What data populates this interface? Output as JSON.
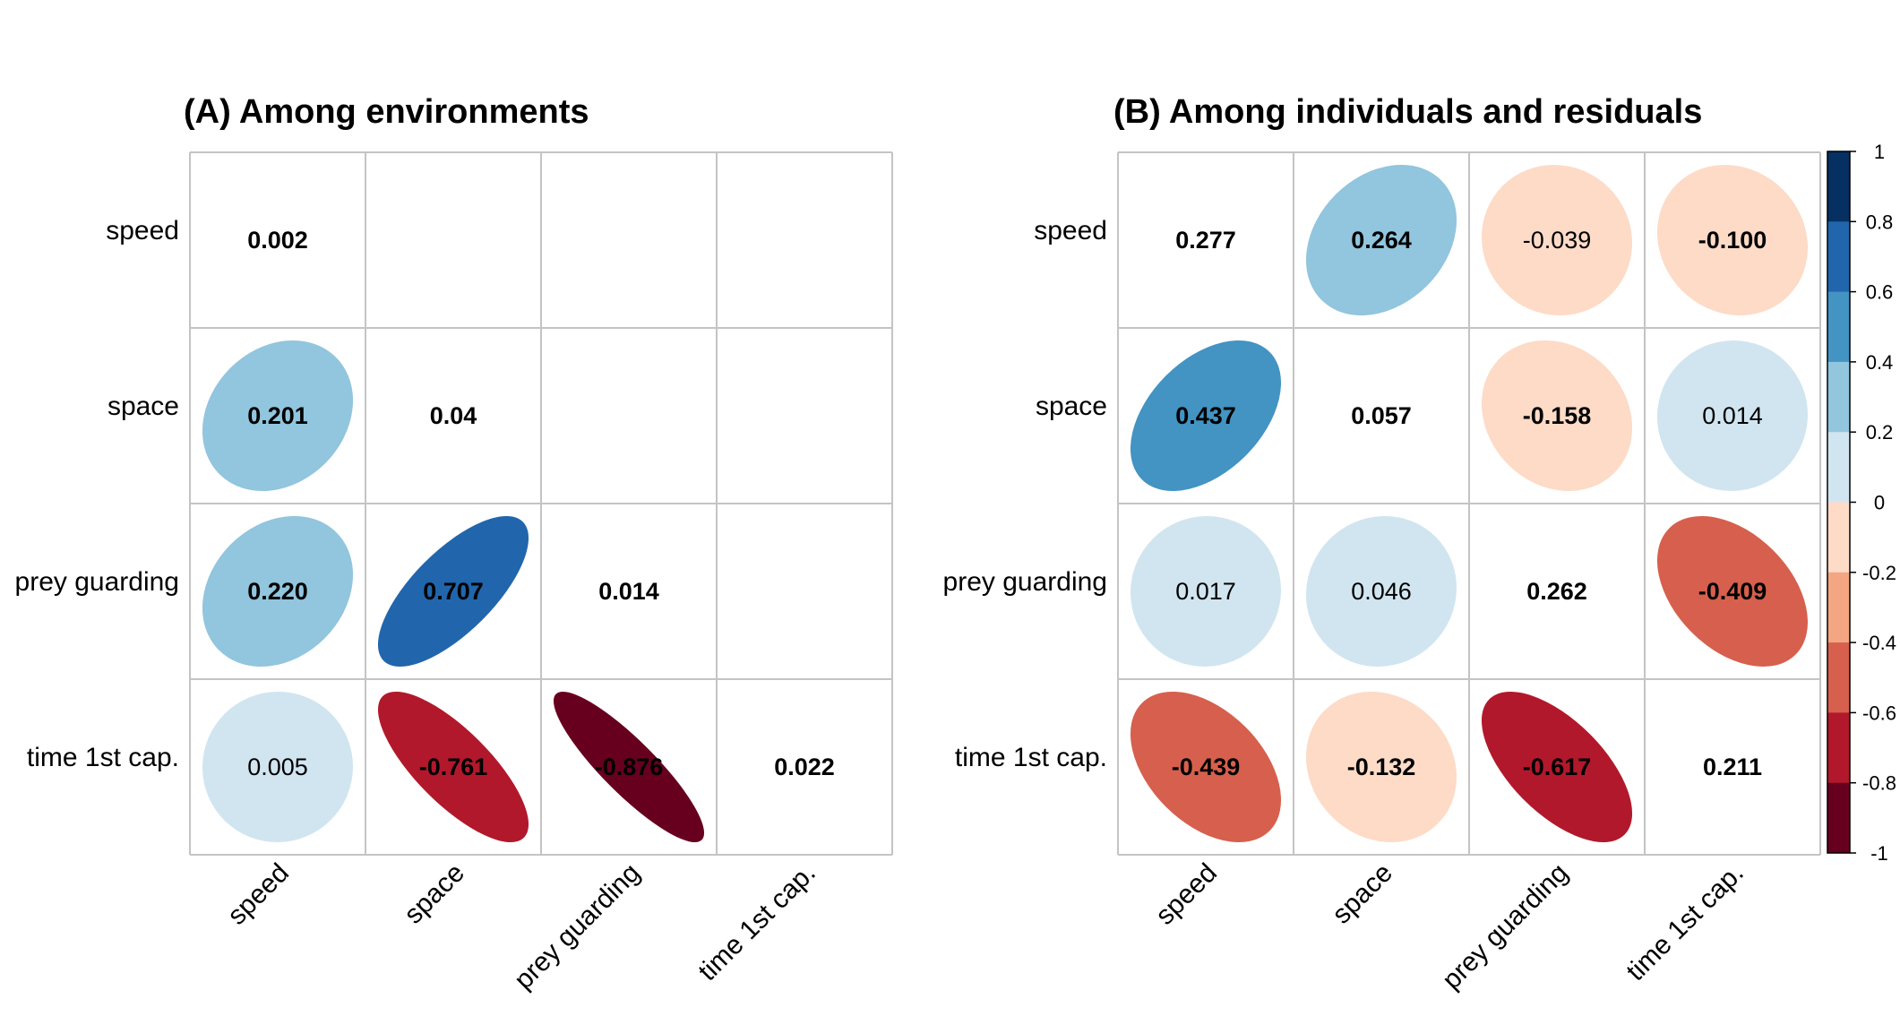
{
  "chart_data": [
    {
      "type": "heatmap",
      "subtype": "correlation-ellipse-matrix",
      "title": "(A) Among environments",
      "variables": [
        "speed",
        "space",
        "prey guarding",
        "time 1st cap."
      ],
      "triangle": "lower",
      "cells": [
        {
          "row": 0,
          "col": 0,
          "value": 0.002,
          "label": "0.002",
          "diagonal": true
        },
        {
          "row": 1,
          "col": 0,
          "value": 0.201,
          "label": "0.201"
        },
        {
          "row": 1,
          "col": 1,
          "value": 0.04,
          "label": "0.04",
          "diagonal": true
        },
        {
          "row": 2,
          "col": 0,
          "value": 0.22,
          "label": "0.220"
        },
        {
          "row": 2,
          "col": 1,
          "value": 0.707,
          "label": "0.707"
        },
        {
          "row": 2,
          "col": 2,
          "value": 0.014,
          "label": "0.014",
          "diagonal": true
        },
        {
          "row": 3,
          "col": 0,
          "value": 0.005,
          "label": "0.005"
        },
        {
          "row": 3,
          "col": 1,
          "value": -0.761,
          "label": "-0.761"
        },
        {
          "row": 3,
          "col": 2,
          "value": -0.876,
          "label": "-0.876"
        },
        {
          "row": 3,
          "col": 3,
          "value": 0.022,
          "label": "0.022",
          "diagonal": true
        }
      ]
    },
    {
      "type": "heatmap",
      "subtype": "correlation-ellipse-matrix",
      "title": "(B) Among individuals and residuals",
      "variables": [
        "speed",
        "space",
        "prey guarding",
        "time 1st cap."
      ],
      "triangle": "full",
      "cells": [
        {
          "row": 0,
          "col": 0,
          "value": 0.277,
          "label": "0.277",
          "diagonal": true
        },
        {
          "row": 0,
          "col": 1,
          "value": 0.264,
          "label": "0.264"
        },
        {
          "row": 0,
          "col": 2,
          "value": -0.039,
          "label": "-0.039"
        },
        {
          "row": 0,
          "col": 3,
          "value": -0.1,
          "label": "-0.100"
        },
        {
          "row": 1,
          "col": 0,
          "value": 0.437,
          "label": "0.437"
        },
        {
          "row": 1,
          "col": 1,
          "value": 0.057,
          "label": "0.057",
          "diagonal": true
        },
        {
          "row": 1,
          "col": 2,
          "value": -0.158,
          "label": "-0.158"
        },
        {
          "row": 1,
          "col": 3,
          "value": 0.014,
          "label": "0.014"
        },
        {
          "row": 2,
          "col": 0,
          "value": 0.017,
          "label": "0.017"
        },
        {
          "row": 2,
          "col": 1,
          "value": 0.046,
          "label": "0.046"
        },
        {
          "row": 2,
          "col": 2,
          "value": 0.262,
          "label": "0.262",
          "diagonal": true
        },
        {
          "row": 2,
          "col": 3,
          "value": -0.409,
          "label": "-0.409"
        },
        {
          "row": 3,
          "col": 0,
          "value": -0.439,
          "label": "-0.439"
        },
        {
          "row": 3,
          "col": 1,
          "value": -0.132,
          "label": "-0.132"
        },
        {
          "row": 3,
          "col": 2,
          "value": -0.617,
          "label": "-0.617"
        },
        {
          "row": 3,
          "col": 3,
          "value": 0.211,
          "label": "0.211",
          "diagonal": true
        }
      ]
    }
  ],
  "colorbar": {
    "range": [
      -1,
      1
    ],
    "ticks": [
      "1",
      "0.8",
      "0.6",
      "0.4",
      "0.2",
      "0",
      "-0.2",
      "-0.4",
      "-0.6",
      "-0.8",
      "-1"
    ],
    "bins": [
      {
        "from": 0.8,
        "to": 1.0,
        "color": "#053061"
      },
      {
        "from": 0.6,
        "to": 0.8,
        "color": "#2166ac"
      },
      {
        "from": 0.4,
        "to": 0.6,
        "color": "#4393c3"
      },
      {
        "from": 0.2,
        "to": 0.4,
        "color": "#92c5de"
      },
      {
        "from": 0.0,
        "to": 0.2,
        "color": "#d1e5f0"
      },
      {
        "from": -0.2,
        "to": 0.0,
        "color": "#fddbc7"
      },
      {
        "from": -0.4,
        "to": -0.2,
        "color": "#f4a582"
      },
      {
        "from": -0.6,
        "to": -0.4,
        "color": "#d6604d"
      },
      {
        "from": -0.8,
        "to": -0.6,
        "color": "#b2182b"
      },
      {
        "from": -1.0,
        "to": -0.8,
        "color": "#67001f"
      }
    ]
  },
  "colors": {
    "grid": "#c4c4c4",
    "text": "#000000"
  }
}
